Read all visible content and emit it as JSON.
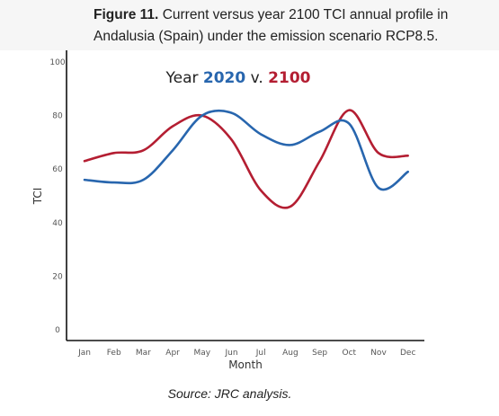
{
  "caption": {
    "label": "Figure 11.",
    "text_line1": "Current versus year 2100 TCI annual profile in",
    "text_line2": "Andalusia (Spain) under the emission scenario RCP8.5."
  },
  "source": "Source: JRC analysis.",
  "colors": {
    "series_2020": "#2866ae",
    "series_2100": "#b41e32",
    "axis": "#111111"
  },
  "chart_data": {
    "type": "line",
    "title_parts": [
      "Year ",
      "2020",
      " v. ",
      "2100"
    ],
    "xlabel": "Month",
    "ylabel": "TCI",
    "categories": [
      "Jan",
      "Feb",
      "Mar",
      "Apr",
      "May",
      "Jun",
      "Jul",
      "Aug",
      "Sep",
      "Oct",
      "Nov",
      "Dec"
    ],
    "yticks": [
      "0",
      "20",
      "40",
      "60",
      "80",
      "100"
    ],
    "ylim": [
      0,
      100
    ],
    "grid": false,
    "legend": "none",
    "series": [
      {
        "name": "2020",
        "values": [
          56,
          55,
          56,
          67,
          80,
          81,
          73,
          69,
          74,
          77,
          53,
          59
        ]
      },
      {
        "name": "2100",
        "values": [
          63,
          66,
          67,
          76,
          80,
          71,
          52,
          46,
          63,
          82,
          66,
          65
        ]
      }
    ]
  }
}
